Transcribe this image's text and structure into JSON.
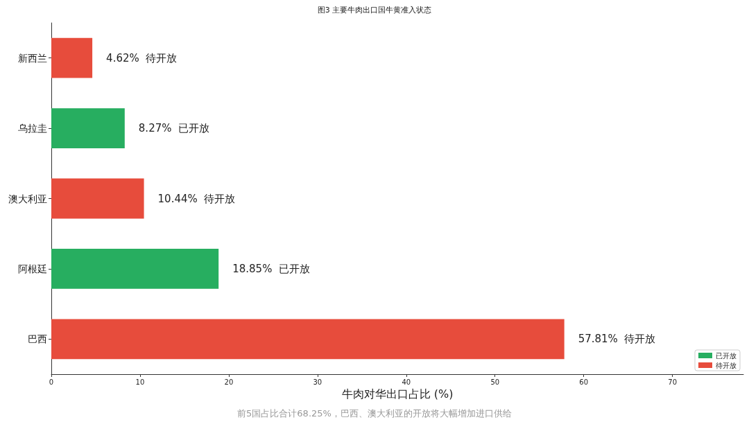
{
  "chart_data": {
    "type": "bar",
    "orientation": "horizontal",
    "title": "图3 主要牛肉出口国牛黄准入状态",
    "xlabel": "牛肉对华出口占比 (%)",
    "categories": [
      "新西兰",
      "乌拉圭",
      "澳大利亚",
      "阿根廷",
      "巴西"
    ],
    "series": [
      {
        "name": "已开放",
        "color": "#27ae60",
        "values": [
          null,
          8.27,
          null,
          18.85,
          null
        ],
        "value_labels": [
          null,
          "8.27%  已开放",
          null,
          "18.85%  已开放",
          null
        ]
      },
      {
        "name": "待开放",
        "color": "#e74c3c",
        "values": [
          4.62,
          null,
          10.44,
          null,
          57.81
        ],
        "value_labels": [
          "4.62%  待开放",
          null,
          "10.44%  待开放",
          null,
          "57.81%  待开放"
        ]
      }
    ],
    "xlim": [
      0,
      78
    ],
    "xticks": [
      0,
      10,
      20,
      30,
      40,
      50,
      60,
      70
    ],
    "grid": false,
    "legend": "bottom right",
    "annotations": [
      "前5国占比合计68.25%，巴西、澳大利亚的开放将大幅增加进口供给"
    ]
  }
}
